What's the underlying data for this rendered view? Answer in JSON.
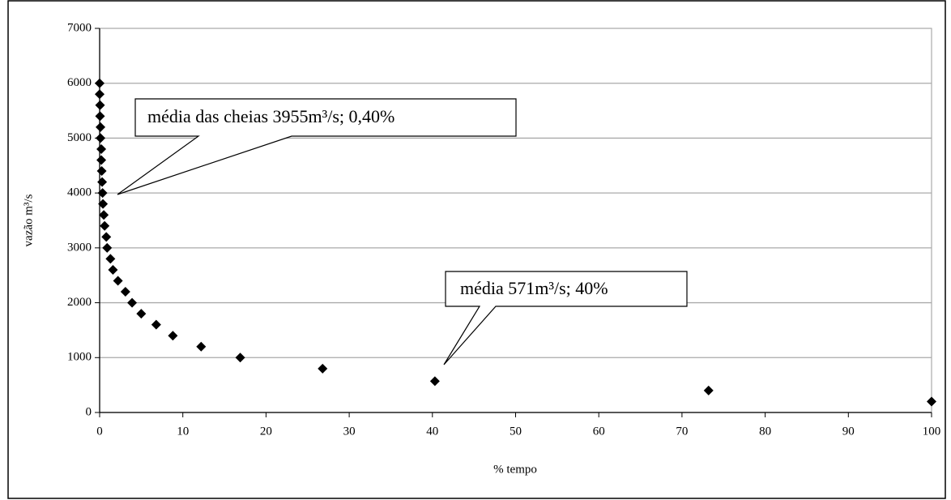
{
  "chart_data": {
    "type": "scatter",
    "xlabel": "% tempo",
    "ylabel": "vazão m³/s",
    "x": [
      0,
      0,
      0.05,
      0.05,
      0.1,
      0.1,
      0.2,
      0.2,
      0.25,
      0.3,
      0.35,
      0.4,
      0.5,
      0.6,
      0.8,
      0.9,
      1.3,
      1.6,
      2.2,
      3.1,
      3.9,
      5,
      6.8,
      8.8,
      12.2,
      16.9,
      26.8,
      40.3,
      73.2,
      100
    ],
    "values": [
      6000,
      5800,
      5600,
      5400,
      5200,
      5000,
      4800,
      4600,
      4400,
      4200,
      4000,
      3800,
      3600,
      3400,
      3200,
      3000,
      2800,
      2600,
      2400,
      2200,
      2000,
      1800,
      1600,
      1400,
      1200,
      1000,
      800,
      571,
      400,
      200
    ],
    "color": "#000000",
    "xlim": [
      0,
      100
    ],
    "xticks": [
      0,
      10,
      20,
      30,
      40,
      50,
      60,
      70,
      80,
      90,
      100
    ],
    "ylim": [
      0,
      7000
    ],
    "yticks": [
      0,
      1000,
      2000,
      3000,
      4000,
      5000,
      6000,
      7000
    ],
    "grid": true,
    "annotations": [
      "média das cheias 3955m³/s; 0,40%",
      "média 571m³/s; 40%"
    ]
  }
}
